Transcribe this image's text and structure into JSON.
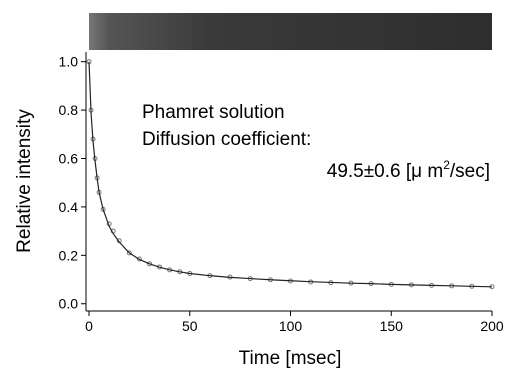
{
  "chart_data": {
    "type": "scatter",
    "x_label": "Time [msec]",
    "y_label": "Relative intensity",
    "annotations": [
      "Phamret solution",
      "Diffusion coefficient:",
      {
        "text": "49.5±0.6 [μ m",
        "sup": "2",
        "tail": "/sec]"
      }
    ],
    "x": [
      0,
      1,
      2,
      3,
      4,
      5,
      7,
      10,
      12,
      15,
      20,
      25,
      30,
      35,
      40,
      45,
      50,
      60,
      70,
      80,
      90,
      100,
      110,
      120,
      130,
      140,
      150,
      160,
      170,
      180,
      190,
      200
    ],
    "series": [
      {
        "style": "markers",
        "color": "#777777",
        "values": [
          1.0,
          0.8,
          0.68,
          0.6,
          0.52,
          0.46,
          0.39,
          0.33,
          0.3,
          0.26,
          0.21,
          0.185,
          0.165,
          0.152,
          0.14,
          0.132,
          0.125,
          0.116,
          0.11,
          0.104,
          0.099,
          0.094,
          0.09,
          0.087,
          0.085,
          0.083,
          0.08,
          0.078,
          0.076,
          0.074,
          0.072,
          0.07
        ]
      },
      {
        "style": "line",
        "color": "#222222",
        "values": [
          1.0,
          0.79,
          0.67,
          0.59,
          0.52,
          0.46,
          0.39,
          0.32,
          0.29,
          0.255,
          0.21,
          0.183,
          0.165,
          0.151,
          0.14,
          0.132,
          0.125,
          0.116,
          0.109,
          0.104,
          0.099,
          0.095,
          0.091,
          0.088,
          0.085,
          0.083,
          0.08,
          0.078,
          0.076,
          0.074,
          0.072,
          0.07
        ]
      }
    ],
    "xlim": [
      -1.5,
      200
    ],
    "ylim": [
      -0.03,
      1.04
    ],
    "xticks": [
      0,
      50,
      100,
      150,
      200
    ],
    "yticks": [
      {
        "value": 0,
        "label": "0.0"
      },
      {
        "value": 0.2,
        "label": "0.2"
      },
      {
        "value": 0.4,
        "label": "0.4"
      },
      {
        "value": 0.6,
        "label": "0.6"
      },
      {
        "value": 0.8,
        "label": "0.8"
      },
      {
        "value": 1,
        "label": "1.0"
      }
    ]
  }
}
